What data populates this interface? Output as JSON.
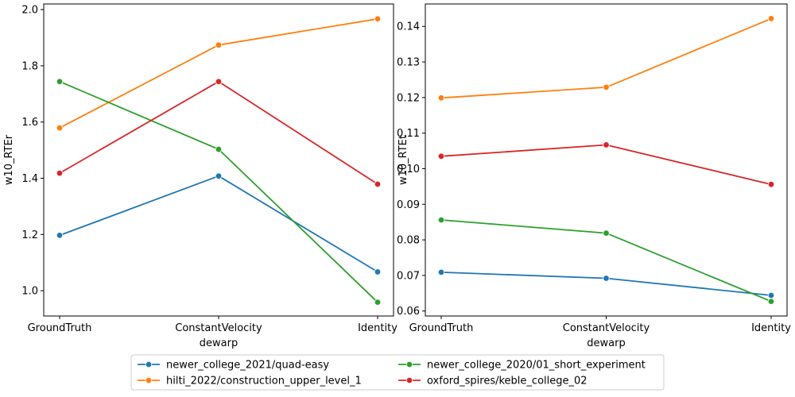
{
  "chart_data": [
    {
      "type": "line",
      "categories": [
        "GroundTruth",
        "ConstantVelocity",
        "Identity"
      ],
      "xlabel": "dewarp",
      "ylabel": "w10_RTEr",
      "ylim": [
        0.91,
        2.02
      ],
      "yticks": [
        "1.0",
        "1.2",
        "1.4",
        "1.6",
        "1.8",
        "2.0"
      ],
      "series": [
        {
          "name": "newer_college_2021/quad-easy",
          "color": "#1f77b4",
          "values": [
            1.197,
            1.408,
            1.067
          ]
        },
        {
          "name": "hilti_2022/construction_upper_level_1",
          "color": "#ff7f0e",
          "values": [
            1.579,
            1.874,
            1.967
          ]
        },
        {
          "name": "newer_college_2020/01_short_experiment",
          "color": "#2ca02c",
          "values": [
            1.744,
            1.503,
            0.959
          ]
        },
        {
          "name": "oxford_spires/keble_college_02",
          "color": "#d62728",
          "values": [
            1.418,
            1.744,
            1.379
          ]
        }
      ]
    },
    {
      "type": "line",
      "categories": [
        "GroundTruth",
        "ConstantVelocity",
        "Identity"
      ],
      "xlabel": "dewarp",
      "ylabel": "w10_RTEt",
      "ylim": [
        0.0586,
        0.1463
      ],
      "yticks": [
        "0.06",
        "0.07",
        "0.08",
        "0.09",
        "0.10",
        "0.11",
        "0.12",
        "0.13",
        "0.14"
      ],
      "series": [
        {
          "name": "newer_college_2021/quad-easy",
          "color": "#1f77b4",
          "values": [
            0.0709,
            0.0692,
            0.0644
          ]
        },
        {
          "name": "hilti_2022/construction_upper_level_1",
          "color": "#ff7f0e",
          "values": [
            0.1199,
            0.1229,
            0.1422
          ]
        },
        {
          "name": "newer_college_2020/01_short_experiment",
          "color": "#2ca02c",
          "values": [
            0.0856,
            0.0819,
            0.0627
          ]
        },
        {
          "name": "oxford_spires/keble_college_02",
          "color": "#d62728",
          "values": [
            0.1035,
            0.1067,
            0.0956
          ]
        }
      ]
    }
  ],
  "legend": {
    "position": "bottom-center",
    "columns": 2,
    "items": [
      {
        "label": "newer_college_2021/quad-easy",
        "color": "#1f77b4"
      },
      {
        "label": "hilti_2022/construction_upper_level_1",
        "color": "#ff7f0e"
      },
      {
        "label": "newer_college_2020/01_short_experiment",
        "color": "#2ca02c"
      },
      {
        "label": "oxford_spires/keble_college_02",
        "color": "#d62728"
      }
    ]
  }
}
